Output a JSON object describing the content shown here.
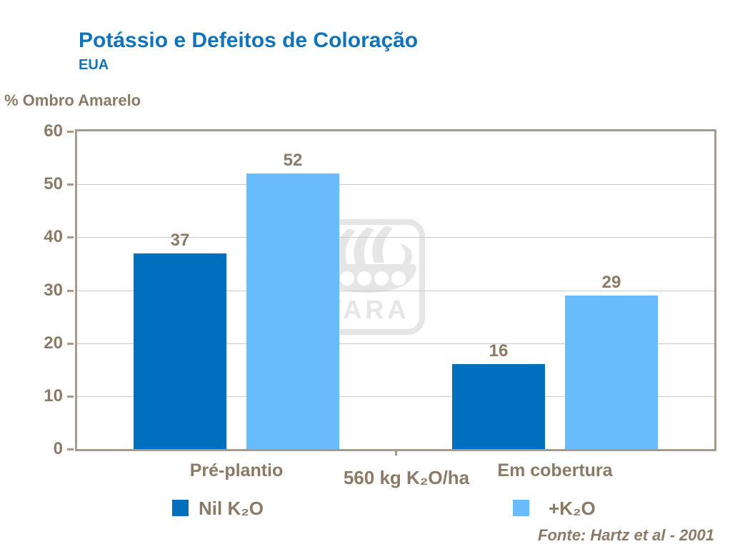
{
  "header": {
    "title": "Potássio e Defeitos de Coloração",
    "subtitle": "EUA"
  },
  "chart_data": {
    "type": "bar",
    "title": "Potássio e Defeitos de Coloração",
    "subtitle": "EUA",
    "ylabel": "% Ombro Amarelo",
    "xlabel": "",
    "ylim": [
      0,
      60
    ],
    "yticks": [
      0,
      10,
      20,
      30,
      40,
      50,
      60
    ],
    "grid": true,
    "value_labels": true,
    "legend_position": "bottom",
    "categories": [
      "Pré-plantio",
      "Em cobertura"
    ],
    "axis_note": "560 kg K₂O/ha",
    "series": [
      {
        "name": "Nil K₂O",
        "color": "#0070be",
        "values": [
          37,
          16
        ]
      },
      {
        "name": "+K₂O",
        "color": "#68bcfb",
        "values": [
          52,
          29
        ]
      }
    ]
  },
  "watermark": {
    "text": "YARA"
  },
  "footer": {
    "source": "Fonte: Hartz et al - 2001"
  },
  "colors": {
    "title_blue": "#1173b9",
    "text_brown": "#8a7a66",
    "series_dark_blue": "#0070be",
    "series_light_blue": "#68bcfb",
    "gridline_gray": "#c9c9c9",
    "axis_frame_tan": "#a89a8b",
    "watermark_gray": "#e6e6e6"
  }
}
